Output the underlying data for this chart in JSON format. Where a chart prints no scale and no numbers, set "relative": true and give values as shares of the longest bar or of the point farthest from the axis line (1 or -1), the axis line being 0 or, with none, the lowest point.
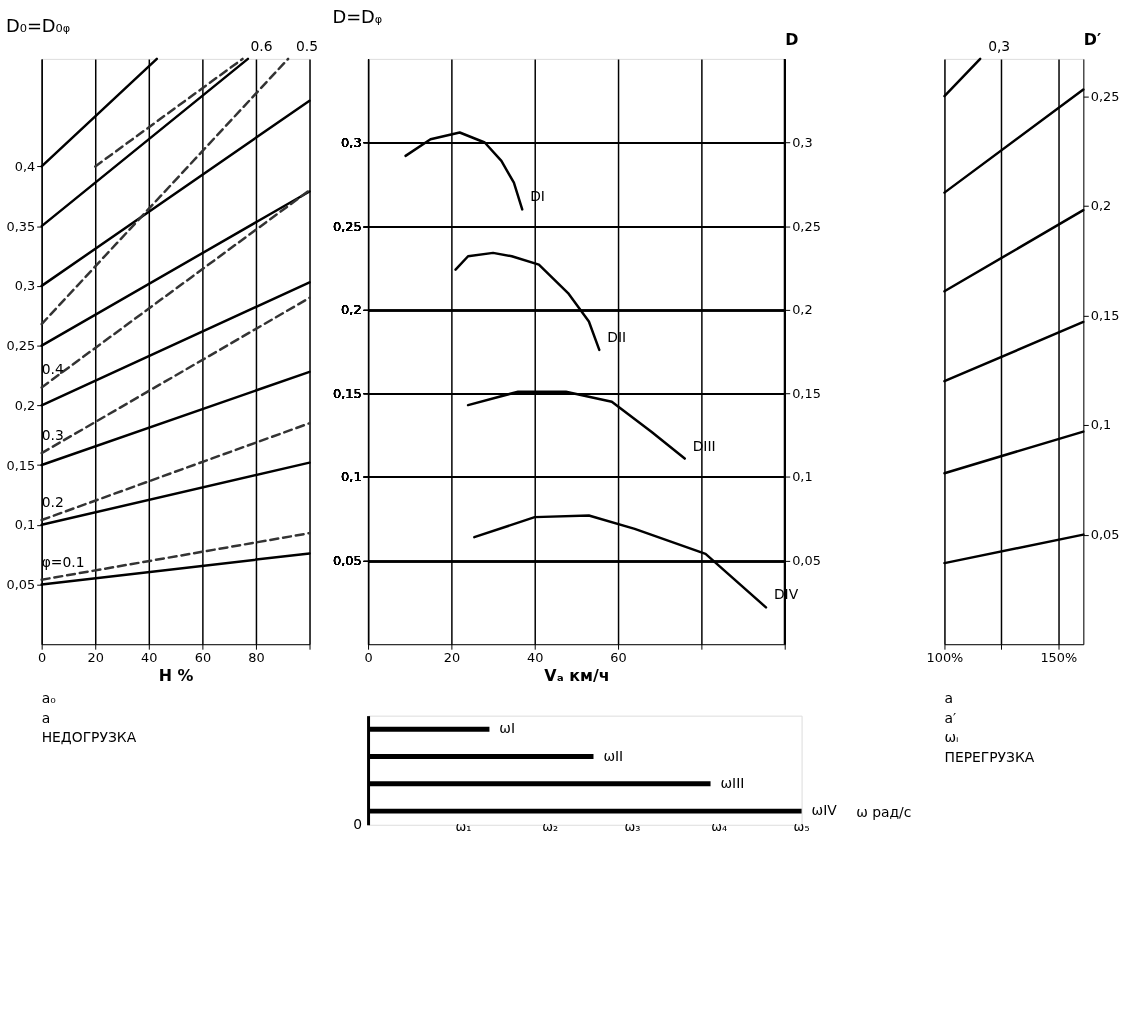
{
  "chart_data": [
    {
      "type": "line",
      "title": "D₀=D₀ᵩ",
      "xlabel": "H %",
      "xlim": [
        0,
        100
      ],
      "xticks": [
        0,
        20,
        40,
        60,
        80,
        {
          "value": 100,
          "label": null
        }
      ],
      "ylim": [
        0,
        0.49
      ],
      "yticks": [
        {
          "value": 0.05,
          "label": "0,05"
        },
        {
          "value": 0.1,
          "label": "0,1"
        },
        {
          "value": 0.15,
          "label": "0,15"
        },
        {
          "value": 0.2,
          "label": "0,2"
        },
        {
          "value": 0.25,
          "label": "0,25"
        },
        {
          "value": 0.3,
          "label": "0,3"
        },
        {
          "value": 0.35,
          "label": "0,35"
        },
        {
          "value": 0.4,
          "label": "0,4"
        }
      ],
      "grid": "x",
      "series": [
        {
          "color": "#000000",
          "line_style": "solid",
          "x": [
            0,
            100
          ],
          "values": [
            0.05,
            0.076
          ]
        },
        {
          "color": "#000000",
          "line_style": "solid",
          "x": [
            0,
            100
          ],
          "values": [
            0.1,
            0.152
          ]
        },
        {
          "color": "#000000",
          "line_style": "solid",
          "x": [
            0,
            100
          ],
          "values": [
            0.15,
            0.228
          ]
        },
        {
          "color": "#000000",
          "line_style": "solid",
          "x": [
            0,
            100
          ],
          "values": [
            0.2,
            0.303
          ]
        },
        {
          "color": "#000000",
          "line_style": "solid",
          "x": [
            0,
            100
          ],
          "values": [
            0.25,
            0.379
          ]
        },
        {
          "color": "#000000",
          "line_style": "solid",
          "x": [
            0,
            100
          ],
          "values": [
            0.3,
            0.455
          ]
        },
        {
          "color": "#000000",
          "line_style": "solid",
          "x": [
            0,
            77
          ],
          "values": [
            0.35,
            0.49
          ]
        },
        {
          "color": "#000000",
          "line_style": "solid",
          "x": [
            0,
            43
          ],
          "values": [
            0.4,
            0.49
          ]
        },
        {
          "name": "φ=0.1",
          "color": "#333333",
          "line_style": "dashed",
          "x": [
            0,
            100
          ],
          "values": [
            0.054,
            0.093
          ]
        },
        {
          "name": "0.2",
          "color": "#333333",
          "line_style": "dashed",
          "x": [
            0,
            100
          ],
          "values": [
            0.104,
            0.185
          ]
        },
        {
          "name": "0.3",
          "color": "#333333",
          "line_style": "dashed",
          "x": [
            0,
            100
          ],
          "values": [
            0.16,
            0.29
          ]
        },
        {
          "name": "0.4",
          "color": "#333333",
          "line_style": "dashed",
          "x": [
            0,
            100
          ],
          "values": [
            0.215,
            0.38
          ]
        },
        {
          "name": "0.5",
          "color": "#333333",
          "line_style": "dashed",
          "x": [
            0,
            92
          ],
          "values": [
            0.268,
            0.49
          ]
        },
        {
          "name": "0.6",
          "color": "#333333",
          "line_style": "dashed",
          "x": [
            20,
            75
          ],
          "values": [
            0.4,
            0.49
          ]
        }
      ],
      "annotations": [
        "a₀",
        "a",
        "НЕДОГРУЗКА"
      ]
    },
    {
      "type": "line",
      "title": "D=Dᵩ",
      "xlabel": "Vₐ км/ч",
      "xlim": [
        0,
        100
      ],
      "xticks": [
        0,
        20,
        40,
        60,
        {
          "value": 80,
          "label": null
        },
        {
          "value": 100,
          "label": null
        }
      ],
      "ylim": [
        0,
        0.35
      ],
      "yticks": [
        {
          "value": 0.05,
          "label": "0,05"
        },
        {
          "value": 0.1,
          "label": "0,1"
        },
        {
          "value": 0.15,
          "label": "0,15"
        },
        {
          "value": 0.2,
          "label": "0,2"
        },
        {
          "value": 0.25,
          "label": "0,25"
        },
        {
          "value": 0.3,
          "label": "0,3"
        }
      ],
      "y2lim": [
        0,
        0.35
      ],
      "y2label": "D",
      "y2ticks": [
        {
          "value": 0.05,
          "label": "0,05"
        },
        {
          "value": 0.1,
          "label": "0,1"
        },
        {
          "value": 0.15,
          "label": "0,15"
        },
        {
          "value": 0.2,
          "label": "0,2"
        },
        {
          "value": 0.25,
          "label": "0,25"
        },
        {
          "value": 0.3,
          "label": "0,3"
        }
      ],
      "grid": true,
      "series": [
        {
          "name": "DI",
          "color": "#000000",
          "line_style": "solid",
          "x": [
            9,
            15,
            22,
            28,
            32,
            35,
            37
          ],
          "values": [
            0.292,
            0.302,
            0.306,
            0.3,
            0.289,
            0.276,
            0.26
          ]
        },
        {
          "name": "DII",
          "color": "#000000",
          "line_style": "solid",
          "x": [
            21,
            24,
            30,
            34.5,
            41,
            48,
            53,
            55.5
          ],
          "values": [
            0.224,
            0.232,
            0.234,
            0.232,
            0.227,
            0.21,
            0.193,
            0.176
          ]
        },
        {
          "name": "DIII",
          "color": "#000000",
          "line_style": "solid",
          "x": [
            24,
            36,
            47.5,
            58.5,
            68,
            76
          ],
          "values": [
            0.143,
            0.151,
            0.151,
            0.145,
            0.127,
            0.111
          ]
        },
        {
          "name": "DIV",
          "color": "#000000",
          "line_style": "solid",
          "x": [
            25.5,
            40,
            53,
            64,
            81,
            95.5
          ],
          "values": [
            0.064,
            0.076,
            0.077,
            0.069,
            0.054,
            0.022
          ]
        }
      ]
    },
    {
      "type": "line",
      "xlim": [
        100,
        161
      ],
      "xticks": [
        {
          "value": 100,
          "label": "100%"
        },
        {
          "value": 125,
          "label": null
        },
        {
          "value": 150,
          "label": "150%"
        }
      ],
      "y2lim": [
        0,
        0.267
      ],
      "y2label": "D′",
      "y2ticks": [
        {
          "value": 0.05,
          "label": "0,05"
        },
        {
          "value": 0.1,
          "label": "0,1"
        },
        {
          "value": 0.15,
          "label": "0,15"
        },
        {
          "value": 0.2,
          "label": "0,2"
        },
        {
          "value": 0.25,
          "label": "0,25"
        }
      ],
      "grid": "x",
      "series": [
        {
          "axis": "y2",
          "color": "#000000",
          "line_style": "solid",
          "x": [
            100,
            161
          ],
          "values": [
            0.037,
            0.05
          ]
        },
        {
          "axis": "y2",
          "color": "#000000",
          "line_style": "solid",
          "x": [
            100,
            161
          ],
          "values": [
            0.078,
            0.097
          ]
        },
        {
          "axis": "y2",
          "color": "#000000",
          "line_style": "solid",
          "x": [
            100,
            161
          ],
          "values": [
            0.12,
            0.147
          ]
        },
        {
          "axis": "y2",
          "color": "#000000",
          "line_style": "solid",
          "x": [
            100,
            161
          ],
          "values": [
            0.161,
            0.198
          ]
        },
        {
          "axis": "y2",
          "color": "#000000",
          "line_style": "solid",
          "x": [
            100,
            161
          ],
          "values": [
            0.206,
            0.253
          ]
        },
        {
          "name": "0,3",
          "axis": "y2",
          "color": "#000000",
          "line_style": "solid",
          "x": [
            100,
            115.7
          ],
          "values": [
            0.25,
            0.267
          ]
        }
      ],
      "annotations": [
        "a",
        "a′",
        "ωᵢ",
        "ПЕРЕГРУЗКА"
      ]
    },
    {
      "type": "bar",
      "orientation": "horizontal",
      "categories": [
        "ωI",
        "ωII",
        "ωIII",
        "ωIV"
      ],
      "values": [
        0.28,
        0.52,
        0.79,
        1
      ],
      "relative": true,
      "color": "#000000",
      "tick_labels": false,
      "annotations": [
        {
          "text": "ω₁",
          "x": 0.22,
          "y": "ωIV"
        },
        {
          "text": "ω₂",
          "x": 0.42,
          "y": "ωIV"
        },
        {
          "text": "ω₃",
          "x": 0.61,
          "y": "ωIV"
        },
        {
          "text": "ω₄",
          "x": 0.81,
          "y": "ωIV"
        },
        {
          "text": "ω₅",
          "x": 1,
          "y": "ωIV"
        },
        "ω рад/с",
        "0"
      ]
    }
  ]
}
